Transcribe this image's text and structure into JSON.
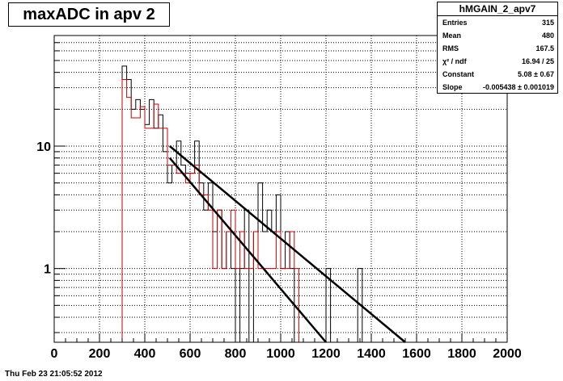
{
  "title": "maxADC in apv 2",
  "timestamp": "Thu Feb 23 21:05:52 2012",
  "stats": {
    "name": "hMGAIN_2_apv7",
    "rows": [
      {
        "label": "Entries",
        "value": "315"
      },
      {
        "label": "Mean",
        "value": "480"
      },
      {
        "label": "RMS",
        "value": "167.5"
      },
      {
        "label": "χ² / ndf",
        "value": "16.94 / 25"
      },
      {
        "label": "Constant",
        "value": "5.08 ± 0.67"
      },
      {
        "label": "Slope",
        "value": "-0.005438 ± 0.001019"
      }
    ]
  },
  "colors": {
    "black": "#000000",
    "red": "#cc0000",
    "grid": "#000000"
  },
  "chart_data": {
    "type": "line",
    "log_y": true,
    "grid": true,
    "xlim": [
      0,
      2000
    ],
    "ylim": [
      0.25,
      80
    ],
    "xticks": [
      0,
      200,
      400,
      600,
      800,
      1000,
      1200,
      1400,
      1600,
      1800,
      2000
    ],
    "ytick_labels": [
      {
        "value": 1,
        "label": "1"
      },
      {
        "value": 10,
        "label": "10"
      }
    ],
    "bin_width": 20,
    "series": [
      {
        "color": "black",
        "bins": [
          {
            "x": 300,
            "y": 45
          },
          {
            "x": 320,
            "y": 35
          },
          {
            "x": 340,
            "y": 20
          },
          {
            "x": 360,
            "y": 24
          },
          {
            "x": 380,
            "y": 20
          },
          {
            "x": 400,
            "y": 15
          },
          {
            "x": 420,
            "y": 24
          },
          {
            "x": 440,
            "y": 14
          },
          {
            "x": 460,
            "y": 18
          },
          {
            "x": 480,
            "y": 9
          },
          {
            "x": 500,
            "y": 5
          },
          {
            "x": 520,
            "y": 7
          },
          {
            "x": 540,
            "y": 11
          },
          {
            "x": 560,
            "y": 7
          },
          {
            "x": 580,
            "y": 6
          },
          {
            "x": 600,
            "y": 6
          },
          {
            "x": 620,
            "y": 11
          },
          {
            "x": 640,
            "y": 5
          },
          {
            "x": 660,
            "y": 3
          },
          {
            "x": 680,
            "y": 5
          },
          {
            "x": 700,
            "y": 2
          },
          {
            "x": 720,
            "y": 3
          },
          {
            "x": 740,
            "y": 1
          },
          {
            "x": 760,
            "y": 2
          },
          {
            "x": 780,
            "y": 1
          },
          {
            "x": 800,
            "y": 0.25
          },
          {
            "x": 820,
            "y": 1
          },
          {
            "x": 840,
            "y": 3
          },
          {
            "x": 860,
            "y": 0.25
          },
          {
            "x": 880,
            "y": 2
          },
          {
            "x": 900,
            "y": 5
          },
          {
            "x": 920,
            "y": 2
          },
          {
            "x": 940,
            "y": 3
          },
          {
            "x": 960,
            "y": 2
          },
          {
            "x": 980,
            "y": 4
          },
          {
            "x": 1000,
            "y": 1
          },
          {
            "x": 1020,
            "y": 2
          },
          {
            "x": 1040,
            "y": 1
          },
          {
            "x": 1060,
            "y": 0.25
          },
          {
            "x": 1080,
            "y": 0.25
          },
          {
            "x": 1100,
            "y": 0.25
          },
          {
            "x": 1120,
            "y": 0.25
          },
          {
            "x": 1140,
            "y": 0.25
          },
          {
            "x": 1160,
            "y": 0.25
          },
          {
            "x": 1180,
            "y": 0.25
          },
          {
            "x": 1200,
            "y": 1
          },
          {
            "x": 1220,
            "y": 0.25
          },
          {
            "x": 1240,
            "y": 0.25
          },
          {
            "x": 1260,
            "y": 0.25
          },
          {
            "x": 1280,
            "y": 0.25
          },
          {
            "x": 1300,
            "y": 0.25
          },
          {
            "x": 1320,
            "y": 0.25
          },
          {
            "x": 1340,
            "y": 1
          }
        ]
      },
      {
        "color": "red",
        "bins": [
          {
            "x": 300,
            "y": 35
          },
          {
            "x": 320,
            "y": 25
          },
          {
            "x": 340,
            "y": 17
          },
          {
            "x": 360,
            "y": 17
          },
          {
            "x": 380,
            "y": 21
          },
          {
            "x": 400,
            "y": 14
          },
          {
            "x": 420,
            "y": 14
          },
          {
            "x": 440,
            "y": 22
          },
          {
            "x": 460,
            "y": 14
          },
          {
            "x": 480,
            "y": 14
          },
          {
            "x": 500,
            "y": 7
          },
          {
            "x": 520,
            "y": 7
          },
          {
            "x": 540,
            "y": 6
          },
          {
            "x": 560,
            "y": 6
          },
          {
            "x": 580,
            "y": 5
          },
          {
            "x": 600,
            "y": 6
          },
          {
            "x": 620,
            "y": 7
          },
          {
            "x": 640,
            "y": 4
          },
          {
            "x": 660,
            "y": 4
          },
          {
            "x": 680,
            "y": 3
          },
          {
            "x": 700,
            "y": 1
          },
          {
            "x": 720,
            "y": 3
          },
          {
            "x": 740,
            "y": 1
          },
          {
            "x": 760,
            "y": 2
          },
          {
            "x": 780,
            "y": 3
          },
          {
            "x": 800,
            "y": 1
          },
          {
            "x": 820,
            "y": 2
          },
          {
            "x": 840,
            "y": 1
          },
          {
            "x": 860,
            "y": 1
          },
          {
            "x": 880,
            "y": 2
          },
          {
            "x": 900,
            "y": 1
          },
          {
            "x": 920,
            "y": 1
          },
          {
            "x": 940,
            "y": 1
          },
          {
            "x": 960,
            "y": 1
          },
          {
            "x": 980,
            "y": 2
          },
          {
            "x": 1000,
            "y": 1
          },
          {
            "x": 1020,
            "y": 1
          },
          {
            "x": 1040,
            "y": 2
          },
          {
            "x": 1060,
            "y": 1
          },
          {
            "x": 1080,
            "y": 0.25
          }
        ]
      }
    ],
    "fits": [
      {
        "color": "black",
        "x_start": 510,
        "y_start": 10,
        "x_end": 1550,
        "y_end": 0.25
      },
      {
        "color": "black",
        "x_start": 510,
        "y_start": 8,
        "x_end": 1200,
        "y_end": 0.25
      }
    ]
  }
}
